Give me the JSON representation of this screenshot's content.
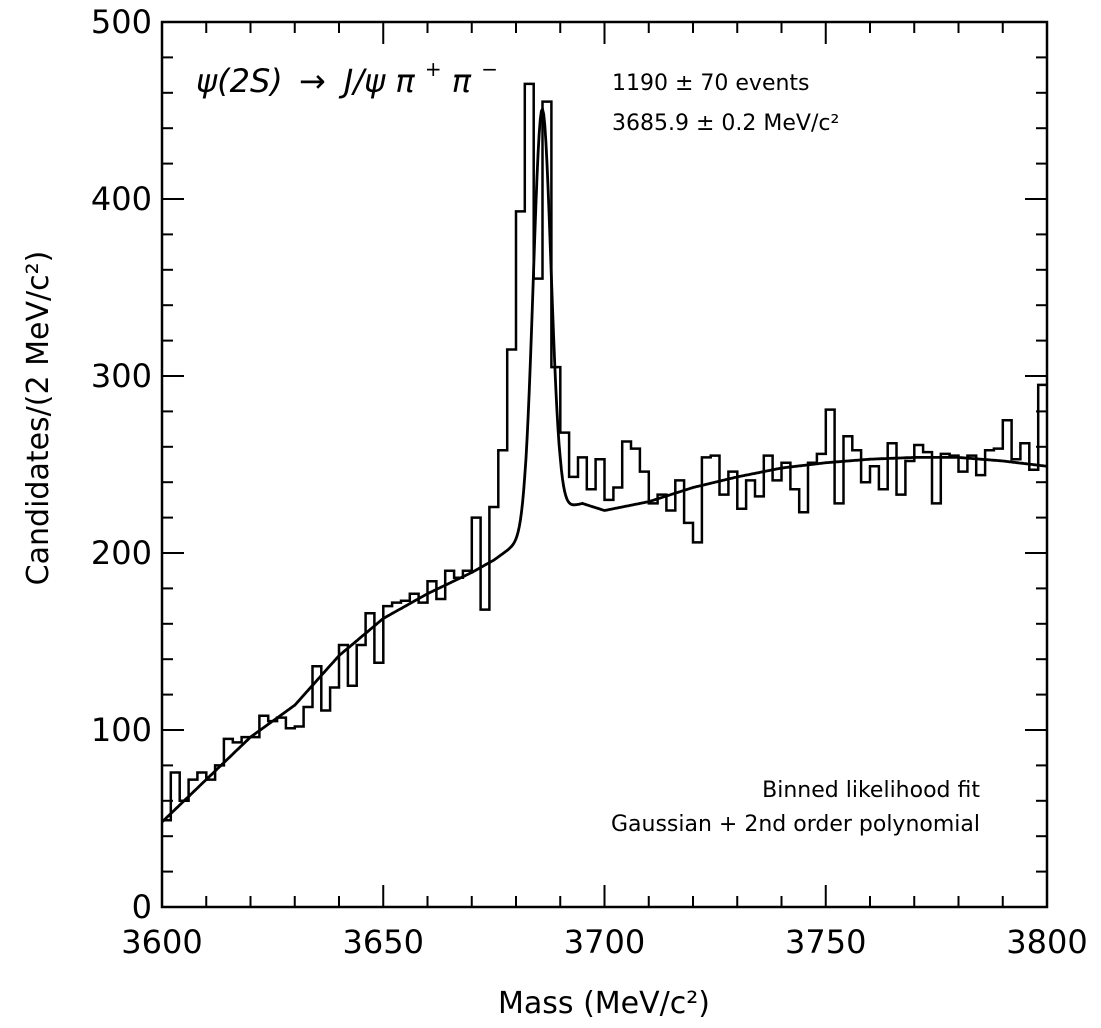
{
  "chart_data": {
    "type": "histogram_with_fit",
    "xlabel": "Mass (MeV/c²)",
    "ylabel": "Candidates/(2 MeV/c²)",
    "xlim": [
      3600,
      3800
    ],
    "ylim": [
      0,
      500
    ],
    "xticks": [
      3600,
      3650,
      3700,
      3750,
      3800
    ],
    "yticks": [
      0,
      100,
      200,
      300,
      400,
      500
    ],
    "grid": false,
    "process": {
      "lhs": "ψ(2S)",
      "arrow": "→",
      "rhs": "J/ψ π",
      "sup1": "+",
      "rhs2": "π",
      "sup2": "−"
    },
    "annotations": {
      "events": "1190 ± 70 events",
      "mass": "3685.9 ± 0.2 MeV/c²",
      "fit_method": "Binned likelihood fit",
      "fit_model": "Gaussian + 2nd order polynomial"
    },
    "bin_width": 2,
    "bin_start": 3600,
    "histogram": [
      49,
      76,
      60,
      72,
      76,
      72,
      80,
      95,
      93,
      96,
      96,
      108,
      105,
      107,
      101,
      102,
      113,
      136,
      111,
      124,
      148,
      125,
      148,
      166,
      138,
      170,
      172,
      173,
      177,
      172,
      184,
      174,
      190,
      186,
      190,
      220,
      168,
      226,
      258,
      315,
      393,
      465,
      355,
      455,
      305,
      268,
      243,
      254,
      236,
      253,
      230,
      237,
      263,
      259,
      246,
      228,
      233,
      224,
      241,
      217,
      206,
      254,
      255,
      233,
      246,
      225,
      241,
      232,
      255,
      241,
      251,
      236,
      223,
      251,
      256,
      281,
      228,
      266,
      258,
      240,
      249,
      236,
      262,
      233,
      252,
      261,
      257,
      228,
      256,
      255,
      246,
      255,
      244,
      258,
      259,
      275,
      253,
      262,
      247,
      295
    ],
    "fit": {
      "type": "line",
      "gaussian": {
        "amplitude": 233,
        "mean": 3685.9,
        "sigma": 2.0
      },
      "background_points": [
        [
          3600,
          48
        ],
        [
          3610,
          72
        ],
        [
          3620,
          96
        ],
        [
          3630,
          114
        ],
        [
          3640,
          142
        ],
        [
          3650,
          163
        ],
        [
          3660,
          177
        ],
        [
          3670,
          189
        ],
        [
          3675,
          196
        ],
        [
          3680,
          205
        ],
        [
          3684,
          213
        ],
        [
          3686,
          218
        ],
        [
          3690,
          225
        ],
        [
          3695,
          228
        ],
        [
          3700,
          224
        ],
        [
          3710,
          229
        ],
        [
          3720,
          237
        ],
        [
          3730,
          243
        ],
        [
          3740,
          248
        ],
        [
          3750,
          251
        ],
        [
          3760,
          253
        ],
        [
          3770,
          254
        ],
        [
          3780,
          254
        ],
        [
          3790,
          252
        ],
        [
          3800,
          249
        ]
      ]
    }
  }
}
